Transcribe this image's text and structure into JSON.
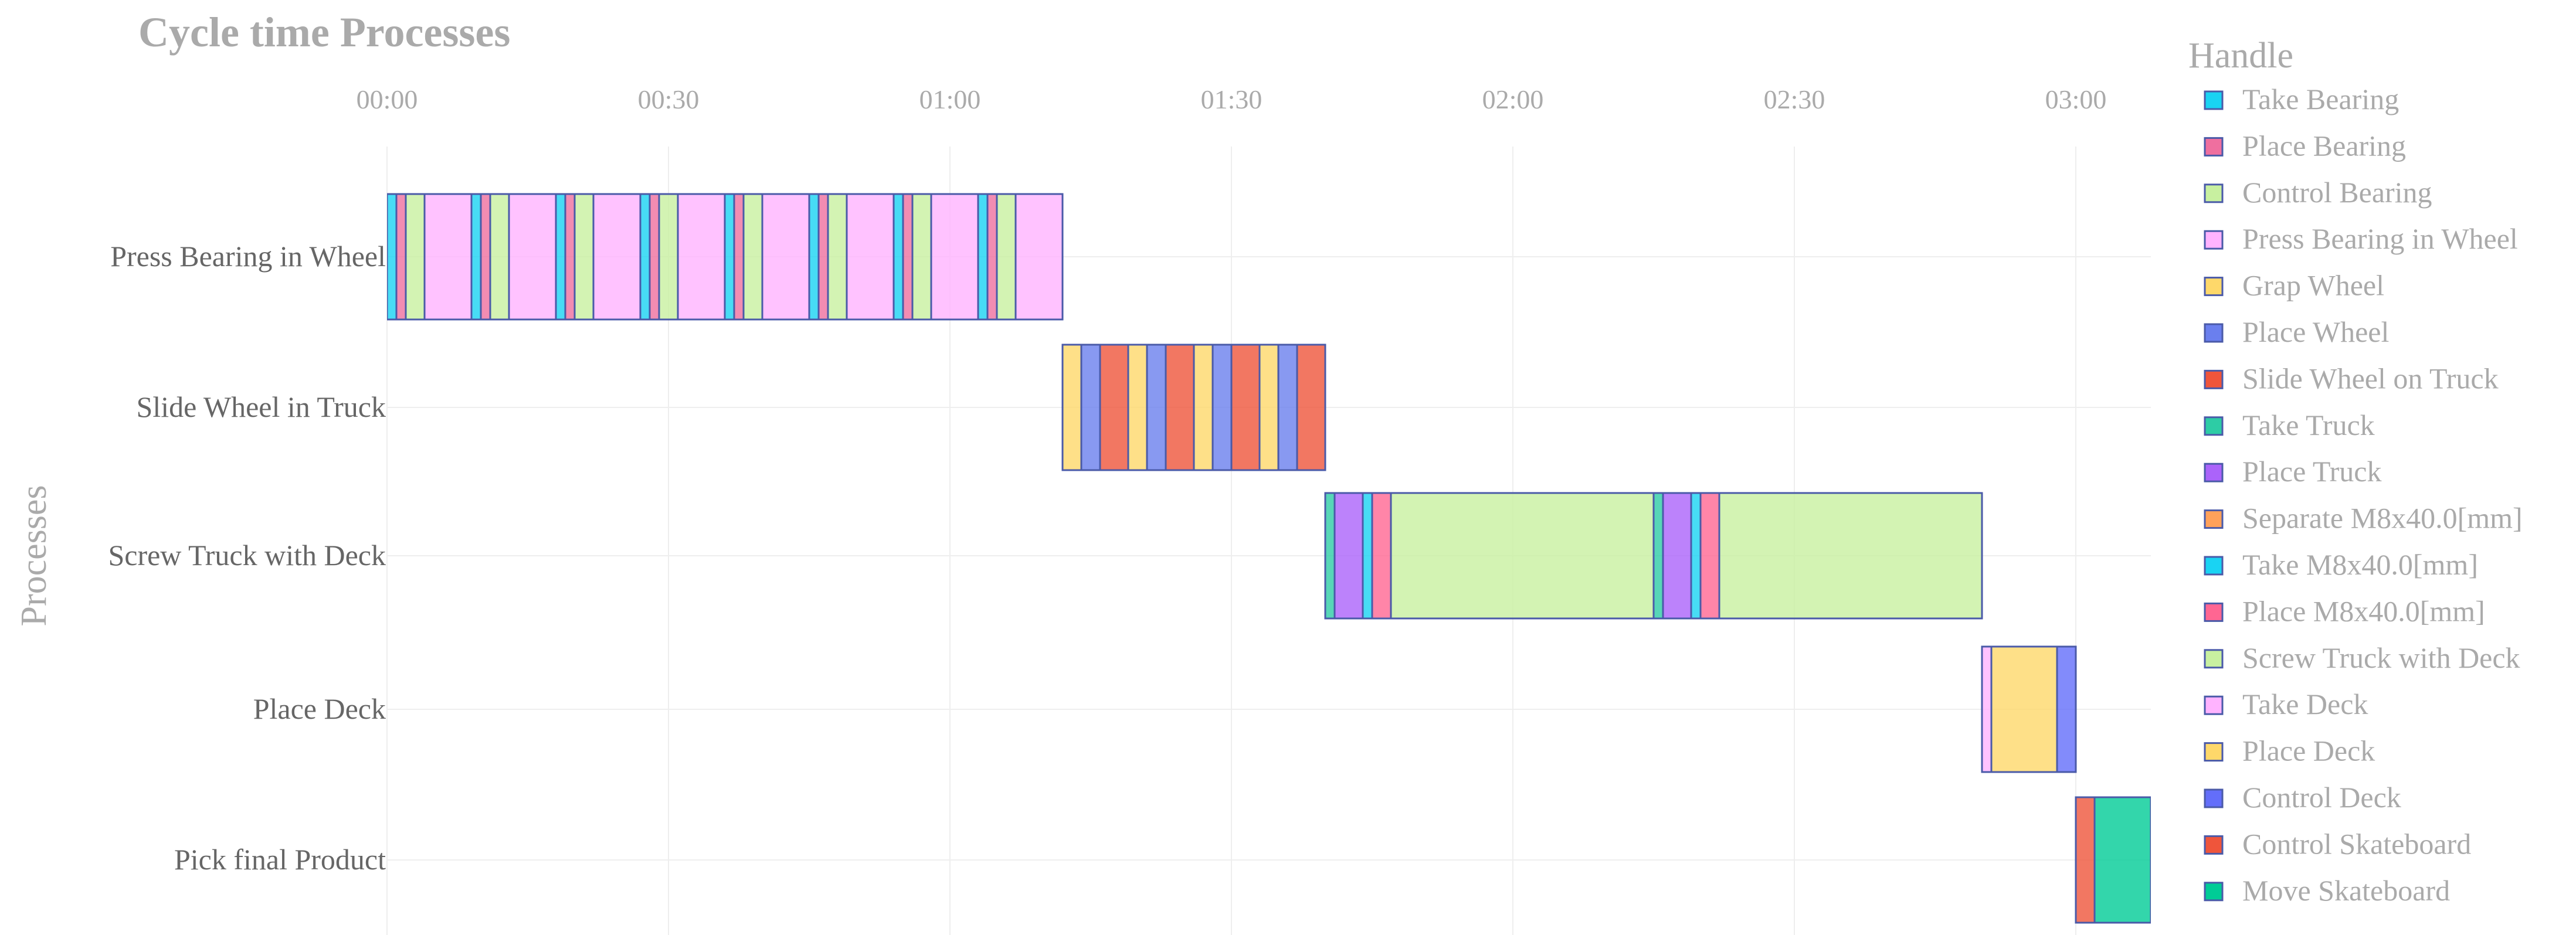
{
  "chart_data": {
    "type": "gantt",
    "title": "Cycle time Processes",
    "ylabel": "Processes",
    "legend_title": "Handle",
    "legend_position": "right",
    "x_unit": "seconds",
    "x_range": [
      0,
      188
    ],
    "x_ticks": [
      {
        "value": 0,
        "label": "00:00"
      },
      {
        "value": 30,
        "label": "00:30"
      },
      {
        "value": 60,
        "label": "01:00"
      },
      {
        "value": 90,
        "label": "01:30"
      },
      {
        "value": 120,
        "label": "02:00"
      },
      {
        "value": 150,
        "label": "02:30"
      },
      {
        "value": 180,
        "label": "03:00"
      }
    ],
    "grid": true,
    "categories": [
      "Press Bearing in Wheel",
      "Slide Wheel in Truck",
      "Screw Truck with Deck",
      "Place Deck",
      "Pick final Product"
    ],
    "handles": [
      {
        "name": "Take Bearing",
        "color": "#19d3f3"
      },
      {
        "name": "Place Bearing",
        "color": "#ef6f9f"
      },
      {
        "name": "Control Bearing",
        "color": "#c8f0a0"
      },
      {
        "name": "Press Bearing in Wheel",
        "color": "#ffb3ff"
      },
      {
        "name": "Grap Wheel",
        "color": "#fed86a"
      },
      {
        "name": "Place Wheel",
        "color": "#6a7fee"
      },
      {
        "name": "Slide Wheel on Truck",
        "color": "#ef553b"
      },
      {
        "name": "Take Truck",
        "color": "#2dcca5"
      },
      {
        "name": "Place Truck",
        "color": "#ab63fa"
      },
      {
        "name": "Separate M8x40.0[mm]",
        "color": "#ffa15a"
      },
      {
        "name": "Take M8x40.0[mm]",
        "color": "#19d3f3"
      },
      {
        "name": "Place M8x40.0[mm]",
        "color": "#ff6692"
      },
      {
        "name": "Screw Truck with Deck",
        "color": "#c8f0a0"
      },
      {
        "name": "Take Deck",
        "color": "#ffb3ff"
      },
      {
        "name": "Place Deck",
        "color": "#fed86a"
      },
      {
        "name": "Control Deck",
        "color": "#636efa"
      },
      {
        "name": "Control Skateboard",
        "color": "#ef553b"
      },
      {
        "name": "Move Skateboard",
        "color": "#00cc96"
      }
    ],
    "tasks": [
      {
        "process": "Press Bearing in Wheel",
        "handle": "Take Bearing",
        "start": 0,
        "end": 1
      },
      {
        "process": "Press Bearing in Wheel",
        "handle": "Place Bearing",
        "start": 1,
        "end": 2
      },
      {
        "process": "Press Bearing in Wheel",
        "handle": "Control Bearing",
        "start": 2,
        "end": 4
      },
      {
        "process": "Press Bearing in Wheel",
        "handle": "Press Bearing in Wheel",
        "start": 4,
        "end": 9
      },
      {
        "process": "Press Bearing in Wheel",
        "handle": "Take Bearing",
        "start": 9,
        "end": 10
      },
      {
        "process": "Press Bearing in Wheel",
        "handle": "Place Bearing",
        "start": 10,
        "end": 11
      },
      {
        "process": "Press Bearing in Wheel",
        "handle": "Control Bearing",
        "start": 11,
        "end": 13
      },
      {
        "process": "Press Bearing in Wheel",
        "handle": "Press Bearing in Wheel",
        "start": 13,
        "end": 18
      },
      {
        "process": "Press Bearing in Wheel",
        "handle": "Take Bearing",
        "start": 18,
        "end": 19
      },
      {
        "process": "Press Bearing in Wheel",
        "handle": "Place Bearing",
        "start": 19,
        "end": 20
      },
      {
        "process": "Press Bearing in Wheel",
        "handle": "Control Bearing",
        "start": 20,
        "end": 22
      },
      {
        "process": "Press Bearing in Wheel",
        "handle": "Press Bearing in Wheel",
        "start": 22,
        "end": 27
      },
      {
        "process": "Press Bearing in Wheel",
        "handle": "Take Bearing",
        "start": 27,
        "end": 28
      },
      {
        "process": "Press Bearing in Wheel",
        "handle": "Place Bearing",
        "start": 28,
        "end": 29
      },
      {
        "process": "Press Bearing in Wheel",
        "handle": "Control Bearing",
        "start": 29,
        "end": 31
      },
      {
        "process": "Press Bearing in Wheel",
        "handle": "Press Bearing in Wheel",
        "start": 31,
        "end": 36
      },
      {
        "process": "Press Bearing in Wheel",
        "handle": "Take Bearing",
        "start": 36,
        "end": 37
      },
      {
        "process": "Press Bearing in Wheel",
        "handle": "Place Bearing",
        "start": 37,
        "end": 38
      },
      {
        "process": "Press Bearing in Wheel",
        "handle": "Control Bearing",
        "start": 38,
        "end": 40
      },
      {
        "process": "Press Bearing in Wheel",
        "handle": "Press Bearing in Wheel",
        "start": 40,
        "end": 45
      },
      {
        "process": "Press Bearing in Wheel",
        "handle": "Take Bearing",
        "start": 45,
        "end": 46
      },
      {
        "process": "Press Bearing in Wheel",
        "handle": "Place Bearing",
        "start": 46,
        "end": 47
      },
      {
        "process": "Press Bearing in Wheel",
        "handle": "Control Bearing",
        "start": 47,
        "end": 49
      },
      {
        "process": "Press Bearing in Wheel",
        "handle": "Press Bearing in Wheel",
        "start": 49,
        "end": 54
      },
      {
        "process": "Press Bearing in Wheel",
        "handle": "Take Bearing",
        "start": 54,
        "end": 55
      },
      {
        "process": "Press Bearing in Wheel",
        "handle": "Place Bearing",
        "start": 55,
        "end": 56
      },
      {
        "process": "Press Bearing in Wheel",
        "handle": "Control Bearing",
        "start": 56,
        "end": 58
      },
      {
        "process": "Press Bearing in Wheel",
        "handle": "Press Bearing in Wheel",
        "start": 58,
        "end": 63
      },
      {
        "process": "Press Bearing in Wheel",
        "handle": "Take Bearing",
        "start": 63,
        "end": 64
      },
      {
        "process": "Press Bearing in Wheel",
        "handle": "Place Bearing",
        "start": 64,
        "end": 65
      },
      {
        "process": "Press Bearing in Wheel",
        "handle": "Control Bearing",
        "start": 65,
        "end": 67
      },
      {
        "process": "Press Bearing in Wheel",
        "handle": "Press Bearing in Wheel",
        "start": 67,
        "end": 72
      },
      {
        "process": "Slide Wheel in Truck",
        "handle": "Grap Wheel",
        "start": 72,
        "end": 74
      },
      {
        "process": "Slide Wheel in Truck",
        "handle": "Place Wheel",
        "start": 74,
        "end": 76
      },
      {
        "process": "Slide Wheel in Truck",
        "handle": "Slide Wheel on Truck",
        "start": 76,
        "end": 79
      },
      {
        "process": "Slide Wheel in Truck",
        "handle": "Grap Wheel",
        "start": 79,
        "end": 81
      },
      {
        "process": "Slide Wheel in Truck",
        "handle": "Place Wheel",
        "start": 81,
        "end": 83
      },
      {
        "process": "Slide Wheel in Truck",
        "handle": "Slide Wheel on Truck",
        "start": 83,
        "end": 86
      },
      {
        "process": "Slide Wheel in Truck",
        "handle": "Grap Wheel",
        "start": 86,
        "end": 88
      },
      {
        "process": "Slide Wheel in Truck",
        "handle": "Place Wheel",
        "start": 88,
        "end": 90
      },
      {
        "process": "Slide Wheel in Truck",
        "handle": "Slide Wheel on Truck",
        "start": 90,
        "end": 93
      },
      {
        "process": "Slide Wheel in Truck",
        "handle": "Grap Wheel",
        "start": 93,
        "end": 95
      },
      {
        "process": "Slide Wheel in Truck",
        "handle": "Place Wheel",
        "start": 95,
        "end": 97
      },
      {
        "process": "Slide Wheel in Truck",
        "handle": "Slide Wheel on Truck",
        "start": 97,
        "end": 100
      },
      {
        "process": "Screw Truck with Deck",
        "handle": "Take Truck",
        "start": 100,
        "end": 101
      },
      {
        "process": "Screw Truck with Deck",
        "handle": "Place Truck",
        "start": 101,
        "end": 104
      },
      {
        "process": "Screw Truck with Deck",
        "handle": "Take M8x40.0[mm]",
        "start": 104,
        "end": 105
      },
      {
        "process": "Screw Truck with Deck",
        "handle": "Place M8x40.0[mm]",
        "start": 105,
        "end": 107
      },
      {
        "process": "Screw Truck with Deck",
        "handle": "Screw Truck with Deck",
        "start": 107,
        "end": 135
      },
      {
        "process": "Screw Truck with Deck",
        "handle": "Take Truck",
        "start": 135,
        "end": 136
      },
      {
        "process": "Screw Truck with Deck",
        "handle": "Place Truck",
        "start": 136,
        "end": 139
      },
      {
        "process": "Screw Truck with Deck",
        "handle": "Take M8x40.0[mm]",
        "start": 139,
        "end": 140
      },
      {
        "process": "Screw Truck with Deck",
        "handle": "Place M8x40.0[mm]",
        "start": 140,
        "end": 142
      },
      {
        "process": "Screw Truck with Deck",
        "handle": "Screw Truck with Deck",
        "start": 142,
        "end": 170
      },
      {
        "process": "Place Deck",
        "handle": "Take Deck",
        "start": 170,
        "end": 171
      },
      {
        "process": "Place Deck",
        "handle": "Place Deck",
        "start": 171,
        "end": 178
      },
      {
        "process": "Place Deck",
        "handle": "Control Deck",
        "start": 178,
        "end": 180
      },
      {
        "process": "Pick final Product",
        "handle": "Control Skateboard",
        "start": 180,
        "end": 182
      },
      {
        "process": "Pick final Product",
        "handle": "Move Skateboard",
        "start": 182,
        "end": 188
      }
    ]
  }
}
